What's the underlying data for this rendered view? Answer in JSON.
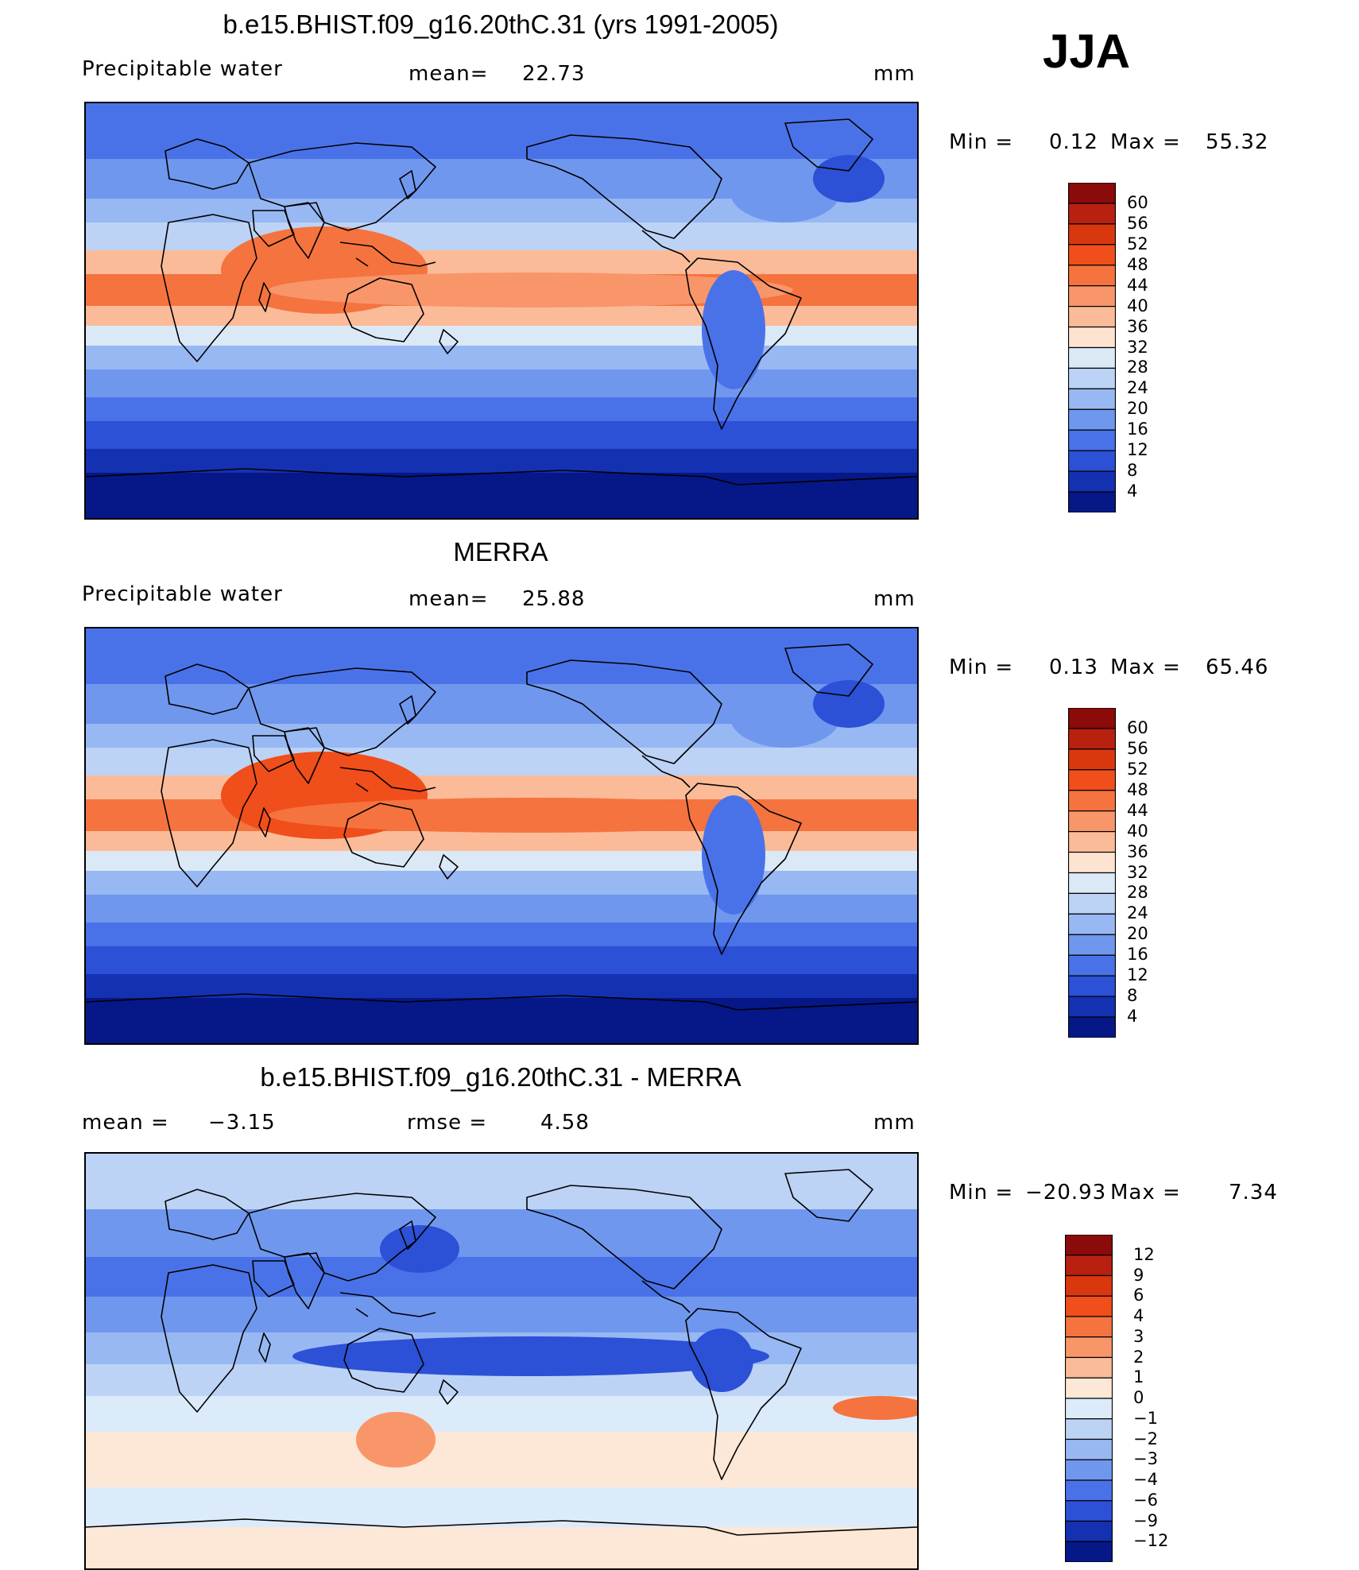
{
  "season": "JJA",
  "panels": [
    {
      "title": "b.e15.BHIST.f09_g16.20thC.31 (yrs 1991-2005)",
      "left_label": "Precipitable  water",
      "stat_label": "mean=",
      "stat_value": "22.73",
      "units": "mm",
      "min_label": "Min  =",
      "min_value": "0.12",
      "max_label": "Max  =",
      "max_value": "55.32",
      "colorbar_labels": [
        "60",
        "56",
        "52",
        "48",
        "44",
        "40",
        "36",
        "32",
        "28",
        "24",
        "20",
        "16",
        "12",
        "8",
        "4"
      ]
    },
    {
      "title": "MERRA",
      "left_label": "Precipitable  water",
      "stat_label": "mean=",
      "stat_value": "25.88",
      "units": "mm",
      "min_label": "Min  =",
      "min_value": "0.13",
      "max_label": "Max  =",
      "max_value": "65.46",
      "colorbar_labels": [
        "60",
        "56",
        "52",
        "48",
        "44",
        "40",
        "36",
        "32",
        "28",
        "24",
        "20",
        "16",
        "12",
        "8",
        "4"
      ]
    },
    {
      "title": "b.e15.BHIST.f09_g16.20thC.31 - MERRA",
      "left_label": "mean  =",
      "left_value": "−3.15",
      "stat_label": "rmse  =",
      "stat_value": "4.58",
      "units": "mm",
      "min_label": "Min  =",
      "min_value": "−20.93",
      "max_label": "Max  =",
      "max_value": "7.34",
      "colorbar_labels": [
        "12",
        "9",
        "6",
        "4",
        "3",
        "2",
        "1",
        "0",
        "−1",
        "−2",
        "−3",
        "−4",
        "−6",
        "−9",
        "−12"
      ]
    }
  ],
  "colors": {
    "seq_16": [
      "#8b0a0a",
      "#b8200f",
      "#d9380f",
      "#f04e1a",
      "#f5733f",
      "#f8966a",
      "#fbbb98",
      "#fde3d0",
      "#dbe9f7",
      "#bcd3f5",
      "#98b8f3",
      "#6f97ee",
      "#4a72e8",
      "#2c50d6",
      "#1431b2",
      "#061887"
    ],
    "diff_16": [
      "#8b0a0a",
      "#b8200f",
      "#d9380f",
      "#f04e1a",
      "#f5733f",
      "#f8966a",
      "#fbbb98",
      "#fde7d6",
      "#dcebfa",
      "#bcd3f5",
      "#98b8f3",
      "#6f97ee",
      "#4a72e8",
      "#2c50d6",
      "#1431b2",
      "#061887"
    ]
  }
}
